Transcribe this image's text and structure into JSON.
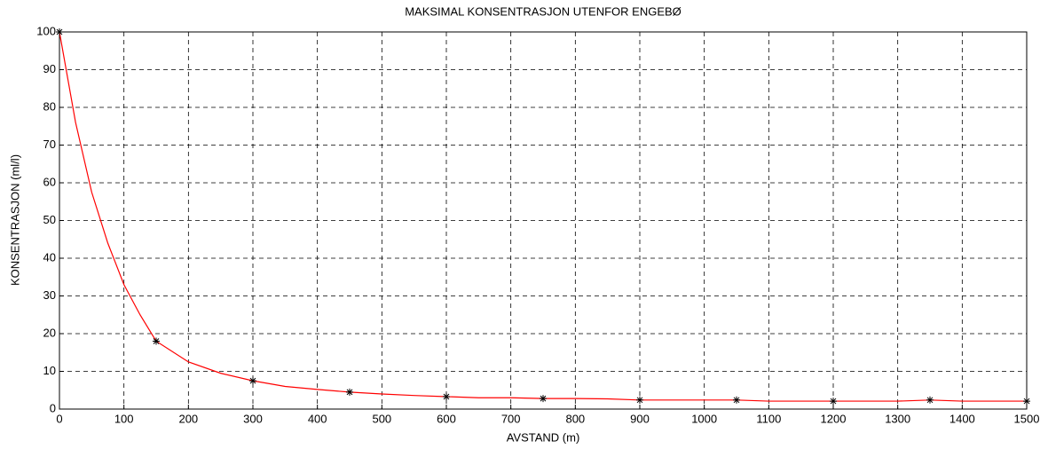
{
  "chart_data": {
    "type": "line",
    "title": "MAKSIMAL KONSENTRASJON UTENFOR ENGEBØ",
    "x_label": "AVSTAND (m)",
    "y_label": "KONSENTRASJON (ml/l)",
    "xlim": [
      0,
      1500
    ],
    "xticks": [
      0,
      100,
      200,
      300,
      400,
      500,
      600,
      700,
      800,
      900,
      1000,
      1100,
      1200,
      1300,
      1400,
      1500
    ],
    "ylim": [
      0,
      100
    ],
    "yticks": [
      0,
      10,
      20,
      30,
      40,
      50,
      60,
      70,
      80,
      90,
      100
    ],
    "grid": true,
    "series": [
      {
        "color": "#ff0000",
        "x": [
          0,
          25,
          50,
          75,
          100,
          125,
          150,
          200,
          250,
          300,
          350,
          400,
          450,
          500,
          550,
          600,
          650,
          700,
          750,
          800,
          850,
          900,
          950,
          1000,
          1050,
          1100,
          1150,
          1200,
          1250,
          1300,
          1350,
          1400,
          1450,
          1500
        ],
        "values": [
          100,
          76,
          57.5,
          44,
          33,
          25,
          18,
          12.5,
          9.5,
          7.5,
          6,
          5.2,
          4.5,
          4,
          3.6,
          3.3,
          3,
          3,
          2.8,
          2.8,
          2.7,
          2.4,
          2.4,
          2.4,
          2.4,
          2.1,
          2.1,
          2.1,
          2.1,
          2.1,
          2.4,
          2.1,
          2.1,
          2.1
        ]
      },
      {
        "color": "#000000",
        "marker": "*",
        "x": [
          0,
          150,
          300,
          450,
          600,
          750,
          900,
          1050,
          1200,
          1350,
          1500
        ],
        "values": [
          100,
          18,
          7.5,
          4.5,
          3.3,
          2.8,
          2.4,
          2.4,
          2.1,
          2.4,
          2.1
        ]
      }
    ]
  }
}
